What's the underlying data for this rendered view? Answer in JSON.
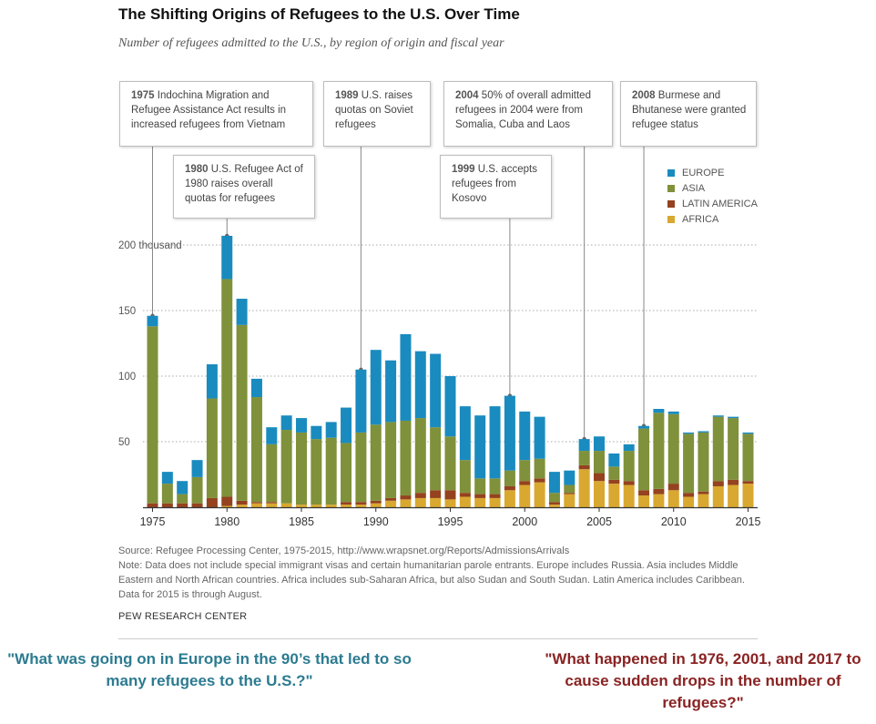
{
  "title": "The Shifting Origins of Refugees to the U.S. Over Time",
  "subtitle": "Number of refugees admitted to the U.S., by region of origin and fiscal year",
  "annotations": [
    {
      "year": "1975",
      "text": "Indochina Migration and Refugee Assistance Act results in increased refugees from Vietnam"
    },
    {
      "year": "1980",
      "text": "U.S. Refugee Act of 1980 raises overall quotas for refugees"
    },
    {
      "year": "1989",
      "text": "U.S. raises quotas on Soviet refugees"
    },
    {
      "year": "1999",
      "text": "U.S. accepts refugees from Kosovo"
    },
    {
      "year": "2004",
      "text": "50% of overall admitted refugees in 2004 were from Somalia, Cuba and Laos"
    },
    {
      "year": "2008",
      "text": "Burmese and Bhutanese were granted refugee status"
    }
  ],
  "notes": {
    "source": "Source: Refugee Processing Center, 1975-2015, http://www.wrapsnet.org/Reports/AdmissionsArrivals",
    "note": "Note: Data does not include special immigrant visas and certain humanitarian parole entrants. Europe includes Russia. Asia includes Middle Eastern and North African countries. Africa includes sub-Saharan Africa, but also Sudan and South Sudan. Latin America includes Caribbean. Data for 2015 is through August.",
    "credit": "PEW RESEARCH CENTER"
  },
  "questions": {
    "europe": "\"What was going on in Europe in the 90’s that led to so many refugees to the U.S.?\"",
    "drops": "\"What happened in 1976, 2001, and 2017 to cause sudden drops in the number of refugees?\""
  },
  "colors": {
    "europe": "#1a8bbf",
    "asia": "#7f913a",
    "latin_america": "#94421f",
    "africa": "#d9a830"
  },
  "chart_data": {
    "type": "bar",
    "stacked": true,
    "x": [
      1975,
      1976,
      1977,
      1978,
      1979,
      1980,
      1981,
      1982,
      1983,
      1984,
      1985,
      1986,
      1987,
      1988,
      1989,
      1990,
      1991,
      1992,
      1993,
      1994,
      1995,
      1996,
      1997,
      1998,
      1999,
      2000,
      2001,
      2002,
      2003,
      2004,
      2005,
      2006,
      2007,
      2008,
      2009,
      2010,
      2011,
      2012,
      2013,
      2014,
      2015
    ],
    "series": [
      {
        "name": "AFRICA",
        "values": [
          0,
          0,
          0,
          0,
          0,
          1,
          2,
          3,
          3,
          3,
          2,
          2,
          2,
          2,
          2,
          3,
          5,
          6,
          7,
          7,
          6,
          8,
          7,
          7,
          13,
          17,
          19,
          2,
          10,
          29,
          20,
          18,
          17,
          9,
          10,
          13,
          8,
          10,
          16,
          17,
          18
        ]
      },
      {
        "name": "LATIN AMERICA",
        "values": [
          3,
          3,
          3,
          3,
          7,
          7,
          3,
          1,
          1,
          0,
          0,
          0,
          0,
          2,
          2,
          2,
          2,
          3,
          4,
          6,
          7,
          3,
          3,
          3,
          3,
          3,
          3,
          2,
          1,
          3,
          6,
          3,
          3,
          4,
          4,
          5,
          3,
          2,
          4,
          4,
          2
        ]
      },
      {
        "name": "ASIA",
        "values": [
          135,
          15,
          7,
          20,
          76,
          166,
          134,
          80,
          44,
          56,
          55,
          50,
          51,
          45,
          53,
          58,
          58,
          57,
          57,
          48,
          41,
          25,
          12,
          12,
          12,
          16,
          15,
          7,
          6,
          11,
          17,
          10,
          23,
          47,
          58,
          53,
          45,
          45,
          49,
          47,
          36
        ]
      },
      {
        "name": "EUROPE",
        "values": [
          8,
          9,
          10,
          13,
          26,
          33,
          20,
          14,
          13,
          11,
          11,
          10,
          12,
          27,
          48,
          57,
          47,
          66,
          51,
          56,
          46,
          41,
          48,
          55,
          57,
          37,
          32,
          16,
          11,
          9,
          11,
          10,
          5,
          2,
          3,
          2,
          1,
          1,
          1,
          1,
          1
        ]
      }
    ],
    "xticks": [
      "1975",
      "1980",
      "1985",
      "1990",
      "1995",
      "2000",
      "2005",
      "2010",
      "2015"
    ],
    "yticks": [
      {
        "v": 50,
        "label": "50"
      },
      {
        "v": 100,
        "label": "100"
      },
      {
        "v": 150,
        "label": "150"
      },
      {
        "v": 200,
        "label": "200 thousand"
      }
    ],
    "ylim": [
      0,
      200
    ],
    "grid": true,
    "legend": "top-right",
    "legend_entries": [
      "EUROPE",
      "ASIA",
      "LATIN AMERICA",
      "AFRICA"
    ]
  }
}
